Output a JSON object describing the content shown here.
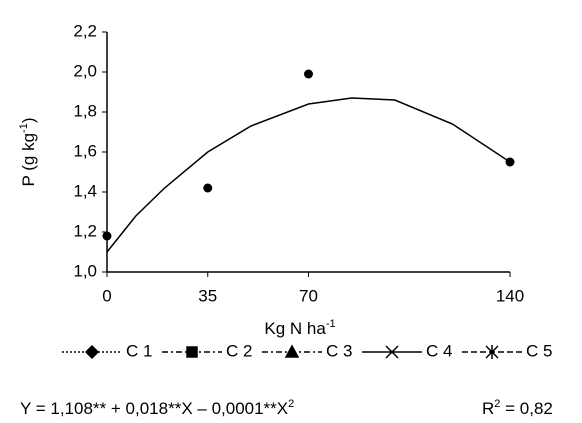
{
  "chart_data": {
    "type": "scatter",
    "ylabel": [
      "P (g kg",
      "-1",
      ")"
    ],
    "xlabel": [
      "Kg N ha",
      "-1"
    ],
    "xlim": [
      0,
      140
    ],
    "xticks": [
      0,
      35,
      70,
      140
    ],
    "ylim": [
      1.0,
      2.2
    ],
    "yticks": [
      {
        "value": 1.0,
        "label": "1,0"
      },
      {
        "value": 1.2,
        "label": "1,2"
      },
      {
        "value": 1.4,
        "label": "1,4"
      },
      {
        "value": 1.6,
        "label": "1,6"
      },
      {
        "value": 1.8,
        "label": "1,8"
      },
      {
        "value": 2.0,
        "label": "2,0"
      },
      {
        "value": 2.2,
        "label": "2,2"
      }
    ],
    "series": [
      {
        "x": [
          0,
          35,
          70,
          140
        ],
        "values": [
          1.18,
          1.42,
          1.99,
          1.55
        ],
        "color": "#000000"
      }
    ],
    "fit": {
      "x": [
        0,
        10,
        20,
        35,
        50,
        70,
        85,
        100,
        120,
        140
      ],
      "values": [
        1.1,
        1.28,
        1.42,
        1.6,
        1.73,
        1.84,
        1.87,
        1.86,
        1.74,
        1.55
      ],
      "color": "#000000"
    },
    "legend": [
      {
        "name": "C 1",
        "marker": "diamond",
        "dash": "2 2"
      },
      {
        "name": "C 2",
        "marker": "square",
        "dash": "6 3 2 3"
      },
      {
        "name": "C 3",
        "marker": "triangle",
        "dash": "6 3 2 3"
      },
      {
        "name": "C 4",
        "marker": "x",
        "dash": ""
      },
      {
        "name": "C 5",
        "marker": "star",
        "dash": "6 3"
      }
    ],
    "equation": [
      "Y = 1,108** + 0,018**X – 0,0001**X",
      "2"
    ],
    "r2": [
      "R",
      "2",
      " = 0,82"
    ]
  }
}
